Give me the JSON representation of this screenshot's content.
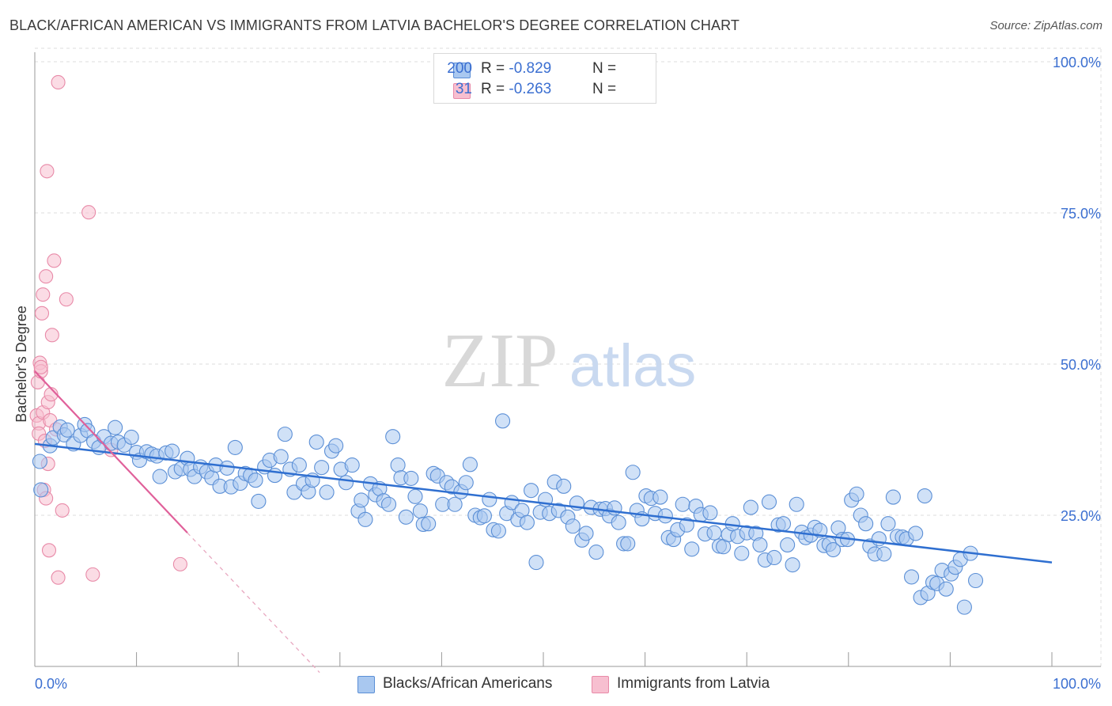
{
  "title": "BLACK/AFRICAN AMERICAN VS IMMIGRANTS FROM LATVIA BACHELOR'S DEGREE CORRELATION CHART",
  "source": "Source: ZipAtlas.com",
  "watermark": {
    "part1": "ZIP",
    "part2": "atlas"
  },
  "colors": {
    "blue_fill": "#a9c8f0",
    "blue_stroke": "#5b8fd6",
    "blue_line": "#2f6fd0",
    "pink_fill": "#f7bfd0",
    "pink_stroke": "#e88aa8",
    "pink_line": "#e0609a",
    "axis_text": "#3b6fd1",
    "grid": "#dddddd"
  },
  "legend": {
    "rows": [
      {
        "r_label": "R = ",
        "r_value": "-0.829",
        "n_label": "N = ",
        "n_value": "200",
        "color": "#a9c8f0"
      },
      {
        "r_label": "R = ",
        "r_value": "-0.263",
        "n_label": "N = ",
        "n_value": "31",
        "color": "#f7bfd0"
      }
    ]
  },
  "bottom_legend": [
    {
      "label": "Blacks/African Americans",
      "color": "#a9c8f0"
    },
    {
      "label": "Immigrants from Latvia",
      "color": "#f7bfd0"
    }
  ],
  "chart_data": {
    "type": "scatter",
    "title": "BLACK/AFRICAN AMERICAN VS IMMIGRANTS FROM LATVIA BACHELOR'S DEGREE CORRELATION CHART",
    "xlabel": "",
    "ylabel": "Bachelor's Degree",
    "xlim": [
      0,
      100
    ],
    "ylim": [
      0,
      100
    ],
    "x_tick_labels": [
      "0.0%",
      "100.0%"
    ],
    "y_tick_labels": [
      "25.0%",
      "50.0%",
      "75.0%",
      "100.0%"
    ],
    "y_ticks": [
      25,
      50,
      75,
      100
    ],
    "grid": true,
    "series": [
      {
        "name": "Blacks/African Americans",
        "color": "#a9c8f0",
        "trend": {
          "x0": 0,
          "y0": 36.8,
          "x1": 100,
          "y1": 17.2
        },
        "points": [
          [
            0.5,
            33.9
          ],
          [
            0.6,
            29.2
          ],
          [
            1.5,
            36.5
          ],
          [
            1.8,
            37.8
          ],
          [
            2.5,
            39.6
          ],
          [
            2.9,
            38.3
          ],
          [
            3.2,
            39.1
          ],
          [
            3.8,
            36.8
          ],
          [
            4.5,
            38.2
          ],
          [
            4.9,
            40.0
          ],
          [
            5.2,
            39.0
          ],
          [
            5.8,
            37.2
          ],
          [
            6.3,
            36.2
          ],
          [
            6.8,
            38.0
          ],
          [
            7.5,
            36.9
          ],
          [
            7.9,
            39.5
          ],
          [
            8.2,
            37.1
          ],
          [
            8.8,
            36.6
          ],
          [
            9.5,
            37.9
          ],
          [
            10.0,
            35.4
          ],
          [
            10.3,
            34.1
          ],
          [
            11.0,
            35.5
          ],
          [
            11.5,
            35.1
          ],
          [
            12.0,
            34.8
          ],
          [
            12.3,
            31.4
          ],
          [
            12.9,
            35.3
          ],
          [
            13.5,
            35.6
          ],
          [
            13.8,
            32.2
          ],
          [
            14.4,
            32.7
          ],
          [
            15.0,
            34.4
          ],
          [
            15.3,
            32.6
          ],
          [
            15.7,
            31.4
          ],
          [
            16.3,
            33.0
          ],
          [
            16.9,
            32.2
          ],
          [
            17.4,
            31.2
          ],
          [
            17.8,
            33.3
          ],
          [
            18.2,
            29.8
          ],
          [
            18.9,
            32.8
          ],
          [
            19.3,
            29.7
          ],
          [
            19.7,
            36.2
          ],
          [
            20.2,
            30.3
          ],
          [
            20.7,
            31.9
          ],
          [
            21.2,
            31.6
          ],
          [
            21.7,
            30.8
          ],
          [
            22.0,
            27.3
          ],
          [
            22.6,
            33.0
          ],
          [
            23.1,
            34.1
          ],
          [
            23.6,
            31.6
          ],
          [
            24.2,
            34.7
          ],
          [
            24.6,
            38.4
          ],
          [
            25.1,
            32.6
          ],
          [
            25.5,
            28.8
          ],
          [
            26.0,
            33.3
          ],
          [
            26.4,
            30.2
          ],
          [
            26.9,
            28.9
          ],
          [
            27.3,
            30.8
          ],
          [
            27.7,
            37.1
          ],
          [
            28.2,
            32.9
          ],
          [
            28.7,
            28.8
          ],
          [
            29.2,
            35.6
          ],
          [
            29.6,
            36.5
          ],
          [
            30.1,
            32.6
          ],
          [
            30.6,
            30.4
          ],
          [
            31.2,
            33.3
          ],
          [
            31.8,
            25.7
          ],
          [
            32.1,
            27.5
          ],
          [
            32.5,
            24.3
          ],
          [
            33.0,
            30.2
          ],
          [
            33.5,
            28.4
          ],
          [
            33.9,
            29.4
          ],
          [
            34.3,
            27.4
          ],
          [
            34.8,
            26.8
          ],
          [
            35.2,
            38.0
          ],
          [
            35.7,
            33.3
          ],
          [
            36.0,
            31.2
          ],
          [
            36.5,
            24.7
          ],
          [
            37.0,
            31.1
          ],
          [
            37.4,
            28.1
          ],
          [
            37.9,
            25.7
          ],
          [
            38.2,
            23.5
          ],
          [
            38.7,
            23.6
          ],
          [
            39.2,
            31.9
          ],
          [
            39.6,
            31.5
          ],
          [
            40.1,
            26.8
          ],
          [
            40.5,
            30.4
          ],
          [
            41.0,
            29.7
          ],
          [
            41.3,
            26.8
          ],
          [
            41.9,
            28.9
          ],
          [
            42.4,
            30.4
          ],
          [
            42.8,
            33.4
          ],
          [
            43.3,
            25.0
          ],
          [
            43.8,
            24.6
          ],
          [
            44.2,
            24.9
          ],
          [
            44.7,
            27.6
          ],
          [
            45.1,
            22.6
          ],
          [
            45.6,
            22.4
          ],
          [
            46.0,
            40.6
          ],
          [
            46.4,
            25.3
          ],
          [
            46.9,
            27.1
          ],
          [
            47.5,
            24.3
          ],
          [
            47.9,
            25.8
          ],
          [
            48.4,
            23.8
          ],
          [
            48.8,
            29.1
          ],
          [
            49.3,
            17.2
          ],
          [
            49.7,
            25.5
          ],
          [
            50.2,
            27.6
          ],
          [
            50.6,
            25.3
          ],
          [
            51.1,
            30.5
          ],
          [
            51.5,
            25.8
          ],
          [
            52.0,
            29.8
          ],
          [
            52.4,
            24.7
          ],
          [
            52.9,
            23.2
          ],
          [
            53.3,
            27.0
          ],
          [
            53.8,
            20.9
          ],
          [
            54.2,
            22.0
          ],
          [
            54.7,
            26.3
          ],
          [
            55.2,
            18.9
          ],
          [
            55.6,
            26.0
          ],
          [
            56.1,
            26.1
          ],
          [
            56.5,
            24.9
          ],
          [
            57.0,
            26.2
          ],
          [
            57.4,
            23.8
          ],
          [
            57.9,
            20.3
          ],
          [
            58.3,
            20.3
          ],
          [
            58.8,
            32.1
          ],
          [
            59.2,
            25.8
          ],
          [
            59.7,
            24.4
          ],
          [
            60.1,
            28.2
          ],
          [
            60.6,
            27.8
          ],
          [
            61.0,
            25.3
          ],
          [
            61.5,
            28.0
          ],
          [
            62.0,
            24.9
          ],
          [
            62.3,
            21.3
          ],
          [
            62.8,
            21.0
          ],
          [
            63.2,
            22.6
          ],
          [
            63.7,
            26.8
          ],
          [
            64.1,
            23.4
          ],
          [
            64.6,
            19.4
          ],
          [
            65.0,
            26.5
          ],
          [
            65.5,
            25.1
          ],
          [
            65.9,
            21.9
          ],
          [
            66.4,
            25.4
          ],
          [
            66.8,
            22.1
          ],
          [
            67.3,
            19.9
          ],
          [
            67.7,
            19.8
          ],
          [
            68.2,
            21.8
          ],
          [
            68.6,
            23.6
          ],
          [
            69.1,
            21.5
          ],
          [
            69.5,
            18.7
          ],
          [
            70.0,
            22.1
          ],
          [
            70.4,
            26.3
          ],
          [
            70.9,
            22.0
          ],
          [
            71.3,
            20.1
          ],
          [
            71.8,
            17.6
          ],
          [
            72.2,
            27.2
          ],
          [
            72.7,
            18.0
          ],
          [
            73.1,
            23.4
          ],
          [
            73.6,
            23.6
          ],
          [
            74.0,
            20.1
          ],
          [
            74.5,
            16.8
          ],
          [
            74.9,
            26.8
          ],
          [
            75.4,
            22.2
          ],
          [
            75.8,
            21.3
          ],
          [
            76.3,
            21.7
          ],
          [
            76.7,
            23.0
          ],
          [
            77.2,
            22.5
          ],
          [
            77.6,
            20.0
          ],
          [
            78.1,
            20.2
          ],
          [
            78.5,
            19.3
          ],
          [
            79.0,
            22.9
          ],
          [
            79.4,
            21.0
          ],
          [
            79.9,
            21.0
          ],
          [
            80.3,
            27.5
          ],
          [
            80.8,
            28.5
          ],
          [
            81.2,
            25.0
          ],
          [
            81.7,
            23.6
          ],
          [
            82.1,
            19.9
          ],
          [
            82.6,
            18.6
          ],
          [
            83.0,
            21.1
          ],
          [
            83.5,
            18.6
          ],
          [
            83.9,
            23.6
          ],
          [
            84.4,
            28.0
          ],
          [
            84.8,
            21.5
          ],
          [
            85.3,
            21.4
          ],
          [
            85.7,
            21.1
          ],
          [
            86.2,
            14.8
          ],
          [
            86.6,
            22.0
          ],
          [
            87.1,
            11.4
          ],
          [
            87.5,
            28.2
          ],
          [
            87.8,
            12.1
          ],
          [
            88.3,
            13.9
          ],
          [
            88.7,
            13.7
          ],
          [
            89.2,
            15.9
          ],
          [
            89.6,
            12.8
          ],
          [
            90.1,
            15.3
          ],
          [
            90.5,
            16.4
          ],
          [
            91.0,
            17.7
          ],
          [
            91.4,
            9.8
          ],
          [
            92.0,
            18.7
          ],
          [
            92.5,
            14.2
          ]
        ]
      },
      {
        "name": "Immigrants from Latvia",
        "color": "#f7bfd0",
        "trend": {
          "x0": 0,
          "y0": 48.8,
          "x1": 15,
          "y1": 22.1,
          "dash_to_x": 28,
          "dash_to_y": -1.0
        },
        "points": [
          [
            0.2,
            41.5
          ],
          [
            0.3,
            47.0
          ],
          [
            0.4,
            40.2
          ],
          [
            0.4,
            38.5
          ],
          [
            0.5,
            50.2
          ],
          [
            0.6,
            48.8
          ],
          [
            0.6,
            49.5
          ],
          [
            0.7,
            58.4
          ],
          [
            0.8,
            61.5
          ],
          [
            0.8,
            42.0
          ],
          [
            0.9,
            29.2
          ],
          [
            1.0,
            37.3
          ],
          [
            1.1,
            27.8
          ],
          [
            1.1,
            64.5
          ],
          [
            1.2,
            81.9
          ],
          [
            1.3,
            33.5
          ],
          [
            1.3,
            43.7
          ],
          [
            1.4,
            19.2
          ],
          [
            1.5,
            40.7
          ],
          [
            1.7,
            54.8
          ],
          [
            1.9,
            67.1
          ],
          [
            2.1,
            39.2
          ],
          [
            2.3,
            14.7
          ],
          [
            2.3,
            96.6
          ],
          [
            2.7,
            25.8
          ],
          [
            3.1,
            60.7
          ],
          [
            5.3,
            75.1
          ],
          [
            5.7,
            15.2
          ],
          [
            7.5,
            35.8
          ],
          [
            14.3,
            16.9
          ],
          [
            1.6,
            45.0
          ]
        ]
      }
    ]
  }
}
